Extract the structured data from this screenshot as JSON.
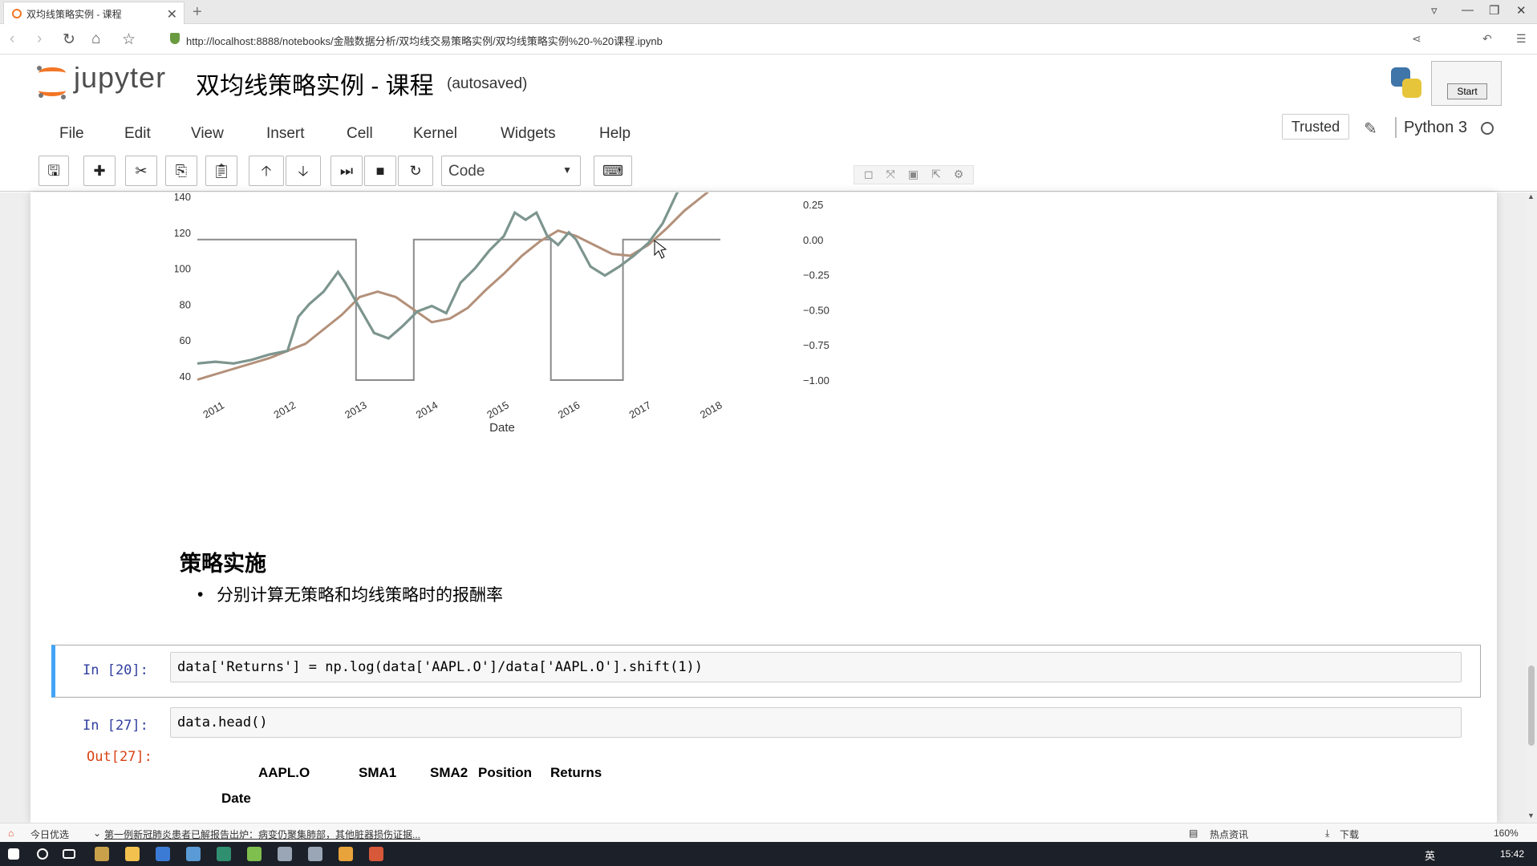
{
  "browser": {
    "tab_title": "双均线策略实例 - 课程",
    "tab_close": "✕",
    "new_tab": "+",
    "url": "http://localhost:8888/notebooks/金融数据分析/双均线交易策略实例/双均线策略实例%20-%20课程.ipynb"
  },
  "jupyter": {
    "logo_text": "jupyter",
    "notebook_title": "双均线策略实例 - 课程",
    "autosave_status": "(autosaved)",
    "start_button": "Start",
    "menus": [
      "File",
      "Edit",
      "View",
      "Insert",
      "Cell",
      "Kernel",
      "Widgets",
      "Help"
    ],
    "trusted": "Trusted",
    "kernel_name": "Python 3",
    "cell_type": "Code"
  },
  "chart_data": {
    "type": "line",
    "xlabel": "Date",
    "x_ticks": [
      "2011",
      "2012",
      "2013",
      "2014",
      "2015",
      "2016",
      "2017",
      "2018"
    ],
    "y_left_ticks": [
      40,
      60,
      80,
      100,
      120,
      140
    ],
    "y_right_ticks": [
      "0.25",
      "0.00",
      "−0.25",
      "−0.50",
      "−0.75",
      "−1.00"
    ],
    "ylim_left": [
      35,
      142
    ],
    "ylim_right": [
      -1.0,
      0.27
    ],
    "series": [
      {
        "role": "price",
        "color": "#7d958f",
        "x": [
          2010.75,
          2011.0,
          2011.25,
          2011.5,
          2011.75,
          2012.0,
          2012.15,
          2012.3,
          2012.5,
          2012.7,
          2012.8,
          2013.0,
          2013.2,
          2013.4,
          2013.6,
          2013.8,
          2014.0,
          2014.2,
          2014.4,
          2014.6,
          2014.8,
          2015.0,
          2015.15,
          2015.3,
          2015.45,
          2015.6,
          2015.75,
          2015.9,
          2016.0,
          2016.2,
          2016.4,
          2016.6,
          2016.8,
          2017.0,
          2017.2,
          2017.4,
          2017.5
        ],
        "values": [
          47,
          48,
          47,
          49,
          52,
          54,
          73,
          80,
          87,
          98,
          92,
          78,
          64,
          61,
          68,
          76,
          79,
          75,
          92,
          100,
          110,
          118,
          131,
          127,
          131,
          118,
          113,
          120,
          116,
          101,
          96,
          101,
          107,
          114,
          125,
          142,
          146
        ]
      },
      {
        "role": "moving-average",
        "color": "#b3907a",
        "x": [
          2010.75,
          2011.25,
          2011.75,
          2012.25,
          2012.75,
          2013.0,
          2013.25,
          2013.5,
          2013.75,
          2014.0,
          2014.25,
          2014.5,
          2014.75,
          2015.0,
          2015.25,
          2015.5,
          2015.75,
          2016.0,
          2016.25,
          2016.5,
          2016.75,
          2017.0,
          2017.25,
          2017.5,
          2017.75,
          2018.0
        ],
        "values": [
          38,
          44,
          50,
          58,
          74,
          84,
          87,
          84,
          77,
          70,
          72,
          78,
          88,
          97,
          107,
          115,
          121,
          118,
          113,
          108,
          107,
          113,
          122,
          132,
          140,
          148
        ]
      }
    ],
    "position_steps": {
      "x": [
        2010.75,
        2012.95,
        2012.95,
        2013.75,
        2013.75,
        2015.65,
        2015.65,
        2016.65,
        2016.65,
        2018.0
      ],
      "values": [
        0.0,
        0.0,
        -1.0,
        -1.0,
        0.0,
        0.0,
        -1.0,
        -1.0,
        0.0,
        0.0
      ]
    }
  },
  "markdown": {
    "heading": "策略实施",
    "bullet": "分别计算无策略和均线策略时的报酬率"
  },
  "cells": {
    "c20": {
      "prompt": "In  [20]:",
      "code": "data['Returns'] = np.log(data['AAPL.O']/data['AAPL.O'].shift(1))"
    },
    "c27": {
      "prompt": "In  [27]:",
      "code": "data.head()",
      "out_prompt": "Out[27]:"
    }
  },
  "dataframe": {
    "columns": [
      "AAPL.O",
      "SMA1",
      "SMA2",
      "Position",
      "Returns"
    ],
    "index_name": "Date"
  },
  "statusbar": {
    "left_item": "今日优选",
    "news": "第一例新冠肺炎患者已解报告出炉：病变仍聚集肺部，其他脏器损伤证据...",
    "hot": "热点资讯",
    "download": "下载",
    "zoom": "160%"
  },
  "taskbar": {
    "ime": "英",
    "time": "15:42"
  }
}
